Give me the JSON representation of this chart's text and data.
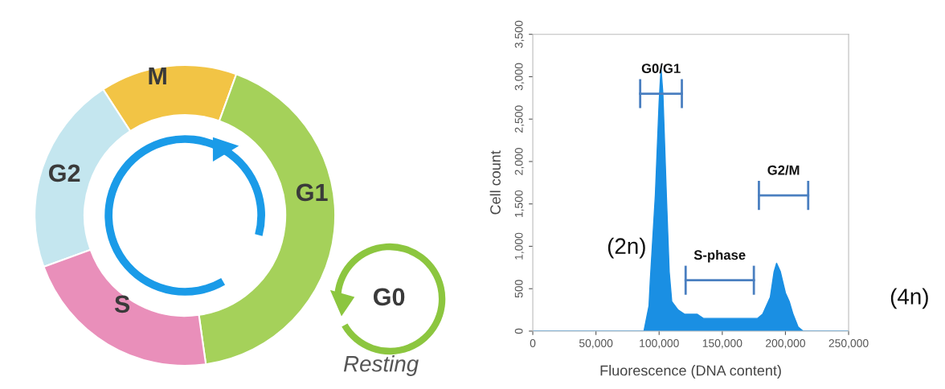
{
  "chart_data": [
    {
      "type": "other",
      "annotations": [
        "M",
        "G2",
        "G1",
        "S",
        "G0",
        "Resting"
      ]
    },
    {
      "type": "area",
      "xlabel": "Fluorescence (DNA content)",
      "ylabel": "Cell count",
      "xlim": [
        0,
        250000
      ],
      "ylim": [
        0,
        3500
      ],
      "xticks": [
        {
          "value": 0,
          "label": "0"
        },
        {
          "value": 50000,
          "label": "50,000"
        },
        {
          "value": 100000,
          "label": "100,000"
        },
        {
          "value": 150000,
          "label": "150,000"
        },
        {
          "value": 200000,
          "label": "200,000"
        },
        {
          "value": 250000,
          "label": "250,000"
        }
      ],
      "yticks": [
        {
          "value": 0,
          "label": "0"
        },
        {
          "value": 500,
          "label": "500"
        },
        {
          "value": 1000,
          "label": "1,000"
        },
        {
          "value": 1500,
          "label": "1,500"
        },
        {
          "value": 2000,
          "label": "2,000"
        },
        {
          "value": 2500,
          "label": "2,500"
        },
        {
          "value": 3000,
          "label": "3,000"
        },
        {
          "value": 3500,
          "label": "3,500"
        }
      ],
      "grid": false,
      "series": [
        {
          "type": "area",
          "color": "#1a8fe3",
          "x": [
            0,
            60000,
            88000,
            92000,
            93000,
            97000,
            100000,
            101500,
            103000,
            106000,
            108000,
            110000,
            115000,
            120000,
            125000,
            130000,
            135000,
            140000,
            150000,
            160000,
            170000,
            178000,
            182000,
            185000,
            188000,
            191000,
            193000,
            196000,
            200000,
            203000,
            206000,
            210000,
            214000,
            250000
          ],
          "values": [
            0,
            0,
            0,
            300,
            600,
            1600,
            2700,
            3100,
            2800,
            1500,
            700,
            350,
            250,
            200,
            200,
            200,
            150,
            150,
            150,
            150,
            150,
            150,
            200,
            300,
            400,
            700,
            800,
            700,
            450,
            350,
            200,
            50,
            0,
            0
          ]
        },
        {
          "type": "line",
          "color": "#4a7fc0",
          "x": [
            85000,
            118000
          ],
          "values": [
            2800,
            2800
          ]
        },
        {
          "type": "line",
          "color": "#4a7fc0",
          "x": [
            121000,
            175000
          ],
          "values": [
            600,
            600
          ]
        },
        {
          "type": "line",
          "color": "#4a7fc0",
          "x": [
            179000,
            218000
          ],
          "values": [
            1600,
            1600
          ]
        }
      ],
      "annotations": [
        {
          "text": "G0/G1",
          "x": 101500,
          "y": 2800
        },
        {
          "text": "S-phase",
          "x": 148000,
          "y": 600
        },
        {
          "text": "G2/M",
          "x": 198500,
          "y": 1600
        },
        "(2n)",
        "(4n)"
      ]
    }
  ]
}
